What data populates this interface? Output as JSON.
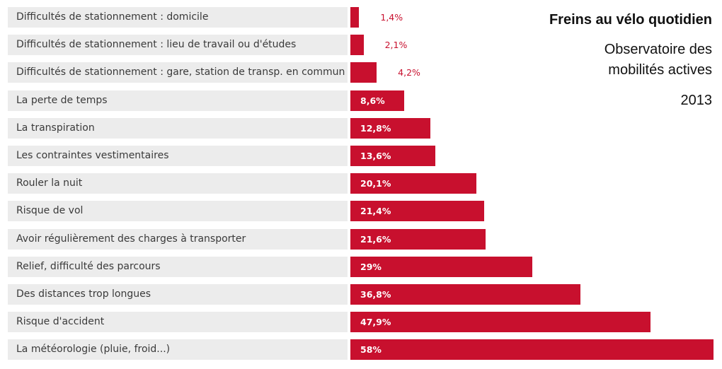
{
  "colors": {
    "bar": "#c8102e",
    "label_bg": "#ececec"
  },
  "chart_data": {
    "type": "bar",
    "orientation": "horizontal",
    "title": "Freins au vélo quotidien",
    "subtitle_lines": [
      "Observatoire des",
      "mobilités actives"
    ],
    "year": "2013",
    "categories": [
      "Difficultés de stationnement : domicile",
      "Difficultés de stationnement : lieu de travail ou d'études",
      "Difficultés de stationnement : gare, station de transp. en commun",
      "La perte de temps",
      "La transpiration",
      "Les contraintes vestimentaires",
      "Rouler la nuit",
      "Risque de vol",
      "Avoir régulièrement des charges à transporter",
      "Relief, difficulté des parcours",
      "Des distances trop longues",
      "Risque d'accident",
      "La météorologie (pluie, froid...)"
    ],
    "values": [
      1.4,
      2.1,
      4.2,
      8.6,
      12.8,
      13.6,
      20.1,
      21.4,
      21.6,
      29,
      36.8,
      47.9,
      58
    ],
    "value_labels": [
      "1,4%",
      "2,1%",
      "4,2%",
      "8,6%",
      "12,8%",
      "13,6%",
      "20,1%",
      "21,4%",
      "21,6%",
      "29%",
      "36,8%",
      "47,9%",
      "58%"
    ],
    "xlim": [
      0,
      58
    ]
  }
}
